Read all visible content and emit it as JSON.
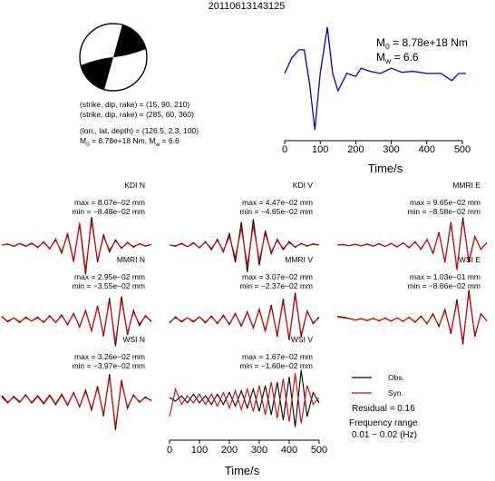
{
  "header": {
    "title": "20110613143125",
    "info": [
      [
        {
          "text": "(strike, dip, rake) = (15, 90, 210)"
        }
      ],
      [
        {
          "text": "(strike, dip, rake) = (285, 60, 360)"
        }
      ],
      [
        {
          "text": "(lon., lat, depth) = (126.5, 2.3, 100)"
        }
      ],
      [
        {
          "text": "M"
        },
        {
          "text": "0",
          "sub": true
        },
        {
          "text": " = 8.78e+18 Nm, M"
        },
        {
          "text": "w",
          "sub": true
        },
        {
          "text": " = 6.6"
        }
      ]
    ]
  },
  "chart_data": [
    {
      "type": "line",
      "color": "#0000cc",
      "annotations": [
        [
          {
            "text": "M"
          },
          {
            "text": "0",
            "sub": true
          },
          {
            "text": " = 8.78e+18 Nm"
          }
        ],
        [
          {
            "text": "M"
          },
          {
            "text": "w",
            "sub": true
          },
          {
            "text": " = 6.6"
          }
        ]
      ],
      "x": [
        0,
        20,
        40,
        55,
        70,
        85,
        100,
        120,
        135,
        150,
        175,
        200,
        215,
        240,
        270,
        300,
        330,
        360,
        400,
        440,
        470,
        490,
        510
      ],
      "values": [
        0.55,
        0.7,
        0.78,
        0.78,
        0.45,
        0.0,
        0.55,
        1.0,
        0.55,
        0.38,
        0.55,
        0.52,
        0.6,
        0.57,
        0.55,
        0.6,
        0.56,
        0.57,
        0.55,
        0.55,
        0.48,
        0.55,
        0.55
      ],
      "xlim": [
        0,
        500
      ],
      "ylim": [
        0,
        1
      ],
      "xticks": [
        0,
        100,
        200,
        300,
        400,
        500
      ],
      "xlabel": "Time/s"
    },
    {
      "type": "waveforms",
      "x": [
        0,
        20,
        40,
        60,
        80,
        100,
        120,
        140,
        160,
        180,
        200,
        220,
        240,
        260,
        280,
        300,
        320,
        340,
        360,
        380,
        400,
        420,
        440,
        460,
        480,
        500
      ],
      "xlim": [
        0,
        500
      ],
      "xticks": [
        0,
        100,
        200,
        300,
        400,
        500
      ],
      "xlabel": "Time/s",
      "series": [
        {
          "name": "Obs.",
          "color": "#000000"
        },
        {
          "name": "Syn.",
          "color": "#e00000"
        }
      ],
      "residual": "Residual = 0.16",
      "frequency_title": "Frequency range",
      "frequency_range": "0.01 − 0.02 (Hz)",
      "panels": [
        {
          "title": "KDI N",
          "max_label": "max = 8.07e−02 mm",
          "min_label": "min = −8.48e−02 mm",
          "ylim": [
            -0.1,
            0.1
          ],
          "values": [
            [
              0,
              0.003,
              -0.004,
              0.005,
              -0.003,
              0.004,
              -0.006,
              0.008,
              -0.01,
              0.015,
              -0.02,
              0.03,
              -0.045,
              0.06,
              -0.085,
              0.081,
              -0.05,
              0.03,
              -0.02,
              0.015,
              -0.01,
              0.008,
              -0.006,
              0.004,
              -0.003,
              0.002
            ],
            [
              0,
              0.002,
              -0.003,
              0.004,
              -0.004,
              0.006,
              -0.008,
              0.01,
              -0.012,
              0.018,
              -0.025,
              0.035,
              -0.05,
              0.065,
              -0.075,
              0.07,
              -0.045,
              0.025,
              -0.015,
              0.012,
              -0.008,
              0.006,
              -0.004,
              0.003,
              -0.002,
              0.001
            ]
          ]
        },
        {
          "title": "KDI V",
          "max_label": "max = 4.47e−02 mm",
          "min_label": "min = −4.65e−02 mm",
          "ylim": [
            -0.06,
            0.06
          ],
          "values": [
            [
              0,
              -0.002,
              0.003,
              -0.003,
              0.004,
              -0.005,
              0.006,
              -0.008,
              0.01,
              -0.012,
              0.02,
              -0.03,
              0.04,
              -0.047,
              0.045,
              -0.035,
              0.025,
              -0.015,
              0.01,
              -0.008,
              0.006,
              -0.004,
              0.003,
              -0.002,
              0.002,
              0
            ],
            [
              0,
              -0.001,
              0.002,
              -0.003,
              0.003,
              -0.004,
              0.005,
              -0.006,
              0.008,
              -0.01,
              0.015,
              -0.022,
              0.03,
              -0.035,
              0.034,
              -0.027,
              0.02,
              -0.012,
              0.008,
              -0.006,
              0.004,
              -0.003,
              0.002,
              -0.001,
              0.001,
              0
            ]
          ]
        },
        {
          "title": "MMRI E",
          "max_label": "max = 9.65e−02 mm",
          "min_label": "min = −8.58e−02 mm",
          "ylim": [
            -0.12,
            0.12
          ],
          "values": [
            [
              0,
              0.002,
              -0.002,
              0.003,
              -0.003,
              0.004,
              -0.004,
              0.005,
              -0.005,
              0.006,
              -0.007,
              0.008,
              -0.01,
              0.012,
              -0.015,
              0.02,
              -0.03,
              0.045,
              -0.06,
              0.08,
              -0.086,
              0.096,
              -0.06,
              0.03,
              -0.015,
              0.008
            ],
            [
              0,
              0.001,
              -0.002,
              0.002,
              -0.003,
              0.003,
              -0.004,
              0.004,
              -0.005,
              0.005,
              -0.006,
              0.007,
              -0.008,
              0.01,
              -0.013,
              0.018,
              -0.028,
              0.042,
              -0.058,
              0.075,
              -0.082,
              0.088,
              -0.055,
              0.028,
              -0.014,
              0.007
            ]
          ]
        },
        {
          "title": "MMRI N",
          "max_label": "max = 2.95e−02 mm",
          "min_label": "min = −3.55e−02 mm",
          "ylim": [
            -0.045,
            0.045
          ],
          "values": [
            [
              0.004,
              -0.003,
              0.002,
              -0.004,
              0.003,
              -0.002,
              0.003,
              -0.004,
              0.005,
              -0.004,
              0.006,
              -0.007,
              0.008,
              -0.01,
              0.012,
              -0.015,
              0.018,
              -0.022,
              0.028,
              -0.035,
              0.03,
              -0.02,
              0.012,
              -0.008,
              0.005,
              -0.003
            ],
            [
              0.003,
              -0.002,
              0.002,
              -0.003,
              0.002,
              -0.002,
              0.002,
              -0.003,
              0.004,
              -0.004,
              0.005,
              -0.006,
              0.007,
              -0.009,
              0.011,
              -0.014,
              0.017,
              -0.02,
              0.025,
              -0.03,
              0.026,
              -0.018,
              0.01,
              -0.006,
              0.004,
              -0.002
            ]
          ]
        },
        {
          "title": "MMRI V",
          "max_label": "max = 3.07e−02 mm",
          "min_label": "min = −2.37e−02 mm",
          "ylim": [
            -0.04,
            0.04
          ],
          "values": [
            [
              -0.004,
              0.003,
              -0.003,
              0.002,
              -0.003,
              0.003,
              -0.004,
              0.004,
              -0.005,
              0.005,
              -0.006,
              0.007,
              -0.008,
              0.009,
              -0.01,
              0.012,
              -0.014,
              0.017,
              -0.02,
              0.024,
              -0.024,
              0.031,
              -0.02,
              0.01,
              -0.005,
              0.003
            ],
            [
              -0.003,
              0.002,
              -0.002,
              0.002,
              -0.002,
              0.003,
              -0.003,
              0.003,
              -0.004,
              0.004,
              -0.005,
              0.006,
              -0.007,
              0.008,
              -0.009,
              0.011,
              -0.013,
              0.015,
              -0.018,
              0.021,
              -0.022,
              0.028,
              -0.018,
              0.009,
              -0.004,
              0.002
            ]
          ]
        },
        {
          "title": "WSI E",
          "max_label": "max = 1.03e−01 mm",
          "min_label": "min = −8.66e−02 mm",
          "ylim": [
            -0.12,
            0.12
          ],
          "values": [
            [
              0.01,
              0.008,
              0.004,
              -0.002,
              0.003,
              -0.004,
              0.004,
              -0.005,
              0.005,
              -0.006,
              0.006,
              -0.007,
              0.008,
              -0.01,
              0.012,
              -0.015,
              0.02,
              -0.025,
              0.035,
              -0.05,
              0.07,
              -0.087,
              0.103,
              -0.06,
              0.02,
              -0.005
            ],
            [
              0.008,
              0.006,
              0.003,
              -0.002,
              0.002,
              -0.003,
              0.003,
              -0.004,
              0.004,
              -0.005,
              0.005,
              -0.006,
              0.007,
              -0.008,
              0.01,
              -0.013,
              0.017,
              -0.022,
              0.03,
              -0.045,
              0.062,
              -0.078,
              0.092,
              -0.055,
              0.018,
              -0.004
            ]
          ]
        },
        {
          "title": "WSI N",
          "max_label": "max = 3.26e−02 mm",
          "min_label": "min = −3.97e−02 mm",
          "ylim": [
            -0.045,
            0.045
          ],
          "values": [
            [
              0.005,
              -0.004,
              0.003,
              -0.004,
              0.006,
              -0.005,
              0.004,
              -0.006,
              0.005,
              -0.007,
              0.006,
              -0.008,
              0.009,
              -0.01,
              0.012,
              -0.014,
              0.017,
              -0.022,
              0.033,
              -0.04,
              0.025,
              -0.012,
              0.006,
              -0.004,
              0.003,
              -0.002
            ],
            [
              0.003,
              -0.005,
              0.004,
              -0.003,
              0.005,
              -0.004,
              0.005,
              -0.005,
              0.006,
              -0.006,
              0.007,
              -0.007,
              0.008,
              -0.009,
              0.01,
              -0.012,
              0.015,
              -0.02,
              0.03,
              -0.036,
              0.022,
              -0.01,
              0.005,
              -0.003,
              0.002,
              -0.001
            ]
          ]
        },
        {
          "title": "WSI V",
          "max_label": "max = 1.67e−02 mm",
          "min_label": "min = −1.60e−02 mm",
          "ylim": [
            -0.02,
            0.02
          ],
          "values": [
            [
              0.001,
              -0.001,
              0.002,
              -0.002,
              0.003,
              -0.002,
              0.002,
              -0.003,
              0.003,
              -0.003,
              0.004,
              -0.004,
              0.005,
              -0.005,
              0.006,
              -0.007,
              0.008,
              -0.009,
              0.01,
              -0.012,
              0.013,
              -0.016,
              0.017,
              -0.01,
              0.004,
              -0.002
            ],
            [
              -0.01,
              0.006,
              -0.003,
              0.002,
              -0.002,
              0.003,
              -0.003,
              0.003,
              -0.004,
              0.004,
              -0.005,
              0.005,
              -0.006,
              0.006,
              -0.007,
              0.008,
              -0.009,
              0.01,
              -0.011,
              0.012,
              -0.013,
              0.015,
              -0.014,
              0.008,
              -0.003,
              0.001
            ]
          ]
        }
      ]
    }
  ]
}
